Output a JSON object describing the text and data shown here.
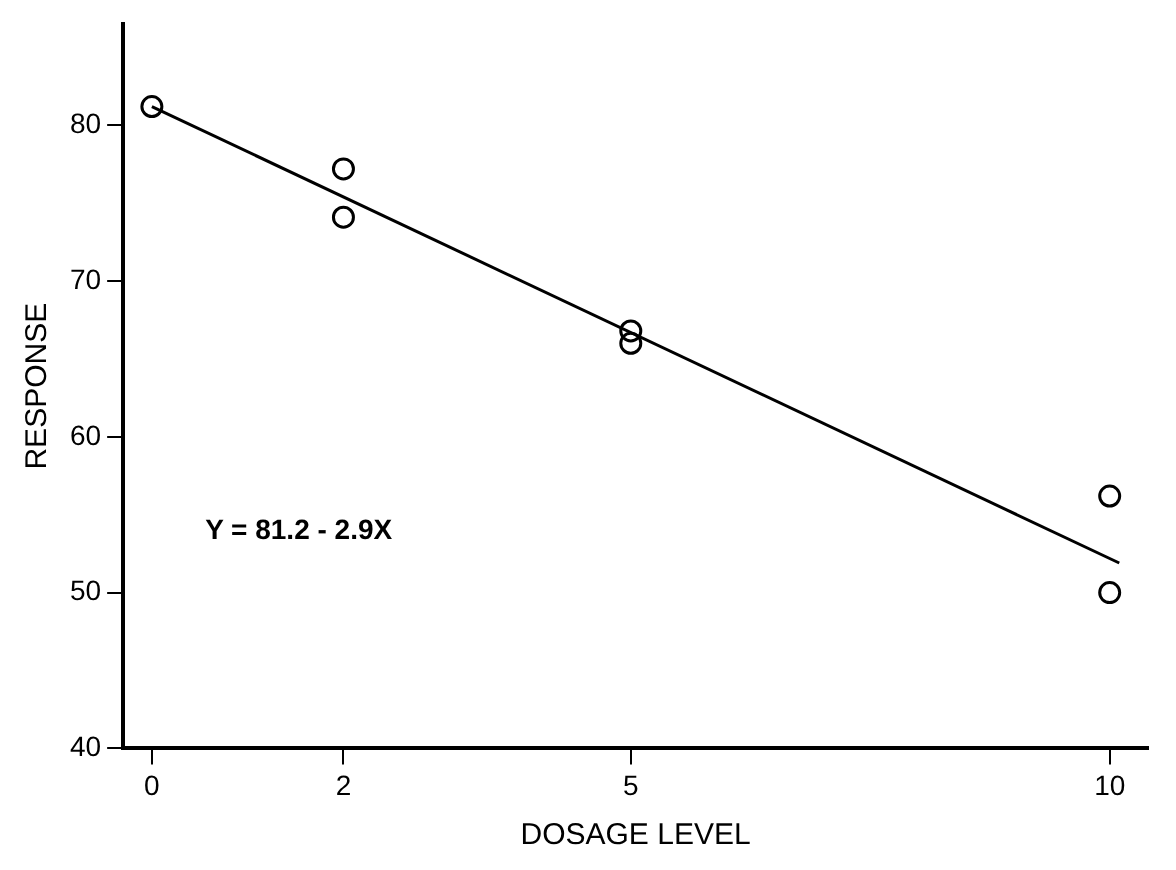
{
  "chart_data": {
    "type": "scatter",
    "xlabel": "DOSAGE LEVEL",
    "ylabel": "RESPONSE",
    "xlim": [
      -0.3,
      10.4
    ],
    "ylim": [
      40,
      86.5
    ],
    "xticks": [
      0,
      2,
      5,
      10
    ],
    "yticks": [
      40,
      50,
      60,
      70,
      80
    ],
    "grid": false,
    "legend": false,
    "marker": "circle",
    "annotations": [
      "Y = 81.2 - 2.9X"
    ],
    "series": [
      {
        "color": "#000000",
        "x": [
          0,
          2,
          2,
          5,
          5,
          10,
          10
        ],
        "values": [
          81.2,
          77.2,
          74.1,
          66.8,
          66.0,
          56.2,
          50.0
        ]
      },
      {
        "type": "line",
        "color": "#000000",
        "x": [
          0,
          10.1
        ],
        "values": [
          81.2,
          51.9
        ],
        "line_style": "solid",
        "marker": "none"
      }
    ]
  }
}
